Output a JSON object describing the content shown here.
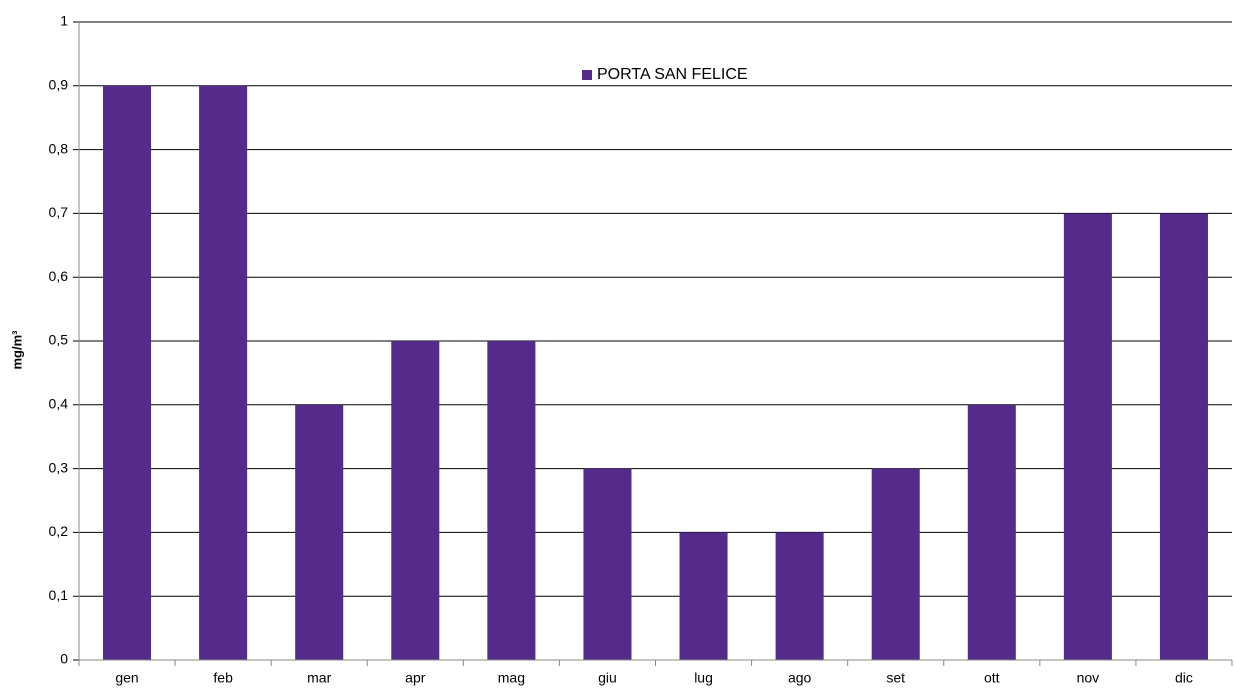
{
  "chart_data": {
    "type": "bar",
    "y_label": "mg/m³",
    "categories": [
      "gen",
      "feb",
      "mar",
      "apr",
      "mag",
      "giu",
      "lug",
      "ago",
      "set",
      "ott",
      "nov",
      "dic"
    ],
    "series": [
      {
        "name": "PORTA SAN FELICE",
        "color": "#552b8a",
        "values": [
          0.9,
          0.9,
          0.4,
          0.5,
          0.5,
          0.3,
          0.2,
          0.2,
          0.3,
          0.4,
          0.7,
          0.7
        ]
      }
    ],
    "ylim": [
      0,
      1
    ],
    "yticks": [
      0,
      {
        "value": 0.1,
        "label": "0,1"
      },
      {
        "value": 0.2,
        "label": "0,2"
      },
      {
        "value": 0.3,
        "label": "0,3"
      },
      {
        "value": 0.4,
        "label": "0,4"
      },
      {
        "value": 0.5,
        "label": "0,5"
      },
      {
        "value": 0.6,
        "label": "0,6"
      },
      {
        "value": 0.7,
        "label": "0,7"
      },
      {
        "value": 0.8,
        "label": "0,8"
      },
      {
        "value": 0.9,
        "label": "0,9"
      },
      1
    ],
    "grid": true,
    "legend": "top"
  }
}
